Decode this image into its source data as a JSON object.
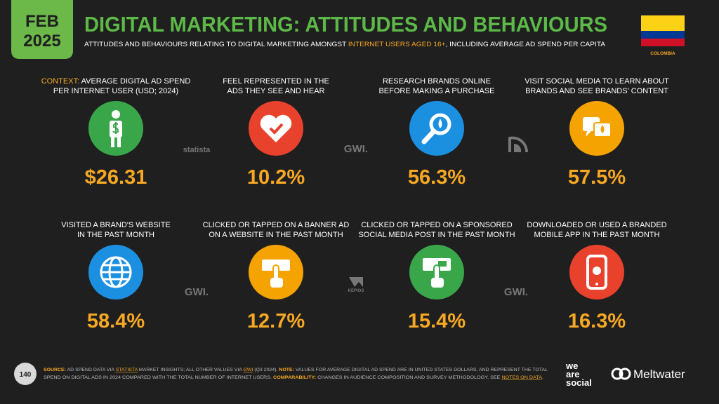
{
  "header": {
    "date_month": "FEB",
    "date_year": "2025",
    "title": "DIGITAL MARKETING: ATTITUDES AND BEHAVIOURS",
    "subtitle": [
      "ATTITUDES AND BEHAVIOURS RELATING TO DIGITAL MARKETING AMONGST ",
      "INTERNET USERS AGED 16+",
      ", INCLUDING AVERAGE AD SPEND PER CAPITA"
    ],
    "country": "COLOMBIA"
  },
  "cards": [
    {
      "prefix": "CONTEXT:",
      "lines": [
        " AVERAGE DIGITAL AD SPEND",
        "PER INTERNET USER (USD; 2024)"
      ],
      "value": "$26.31"
    },
    {
      "lines": [
        "FEEL REPRESENTED IN THE",
        "ADS THEY SEE AND HEAR"
      ],
      "value": "10.2%"
    },
    {
      "lines": [
        "RESEARCH BRANDS ONLINE",
        "BEFORE MAKING A PURCHASE"
      ],
      "value": "56.3%"
    },
    {
      "lines": [
        "VISIT SOCIAL MEDIA TO LEARN ABOUT",
        "BRANDS AND SEE BRANDS' CONTENT"
      ],
      "value": "57.5%"
    },
    {
      "lines": [
        "VISITED A BRAND'S WEBSITE",
        "IN THE PAST MONTH"
      ],
      "value": "58.4%"
    },
    {
      "lines": [
        "CLICKED OR TAPPED ON A BANNER AD",
        "ON A WEBSITE IN THE PAST MONTH"
      ],
      "value": "12.7%"
    },
    {
      "lines": [
        "CLICKED OR TAPPED ON A SPONSORED",
        "SOCIAL MEDIA POST IN THE PAST MONTH"
      ],
      "value": "15.4%"
    },
    {
      "lines": [
        "DOWNLOADED OR USED A BRANDED",
        "MOBILE APP IN THE PAST MONTH"
      ],
      "value": "16.3%"
    }
  ],
  "sources": [
    "statista",
    "GWI.",
    "GWI.",
    "KEPIOS",
    "GWI."
  ],
  "footer": {
    "page": "140",
    "lines": [
      [
        "SOURCE:",
        " AD SPEND DATA VIA ",
        "STATISTA",
        " MARKET INSIGHTS; ALL OTHER VALUES VIA ",
        "GWI",
        " (Q3 2024). ",
        "NOTE:",
        " VALUES FOR AVERAGE DIGITAL AD SPEND ARE IN UNITED STATES DOLLARS, AND REPRESENT THE TOTAL"
      ],
      [
        "SPEND ON DIGITAL ADS IN 2024 COMPARED WITH THE TOTAL NUMBER OF INTERNET USERS. ",
        "COMPARABILITY:",
        " CHANGES IN AUDIENCE COMPOSITION AND SURVEY METHODOLOGY. SEE ",
        "NOTES ON DATA",
        "."
      ]
    ],
    "brand1": [
      "we",
      "are",
      "social"
    ],
    "brand2": "Meltwater"
  }
}
